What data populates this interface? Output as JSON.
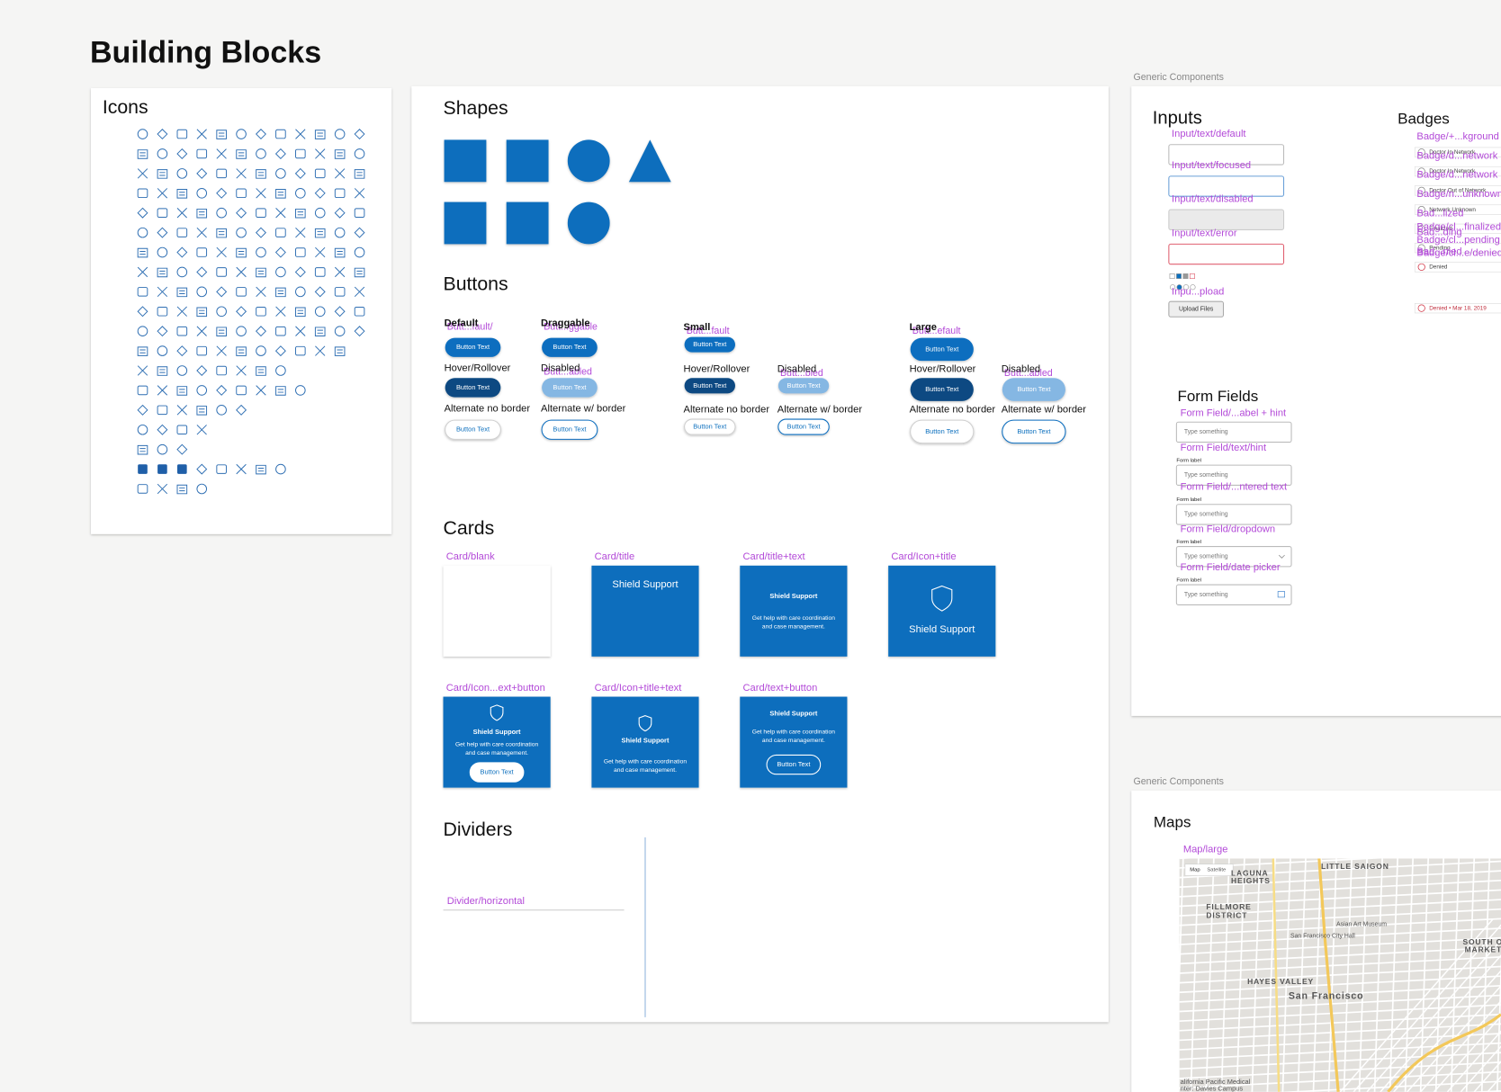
{
  "header": {
    "title": "Building Blocks"
  },
  "icons": {
    "title": "Icons"
  },
  "shapes": {
    "title": "Shapes"
  },
  "buttons": {
    "title": "Buttons",
    "button_text": "Button Text",
    "items": [
      {
        "label": "Default",
        "tag": "Butt...fault/",
        "style": "default",
        "size": "medium"
      },
      {
        "label": "Hover/Rollover",
        "style": "hover",
        "size": "medium"
      },
      {
        "label": "Alternate no border",
        "style": "alt",
        "size": "medium"
      },
      {
        "label": "Draggable",
        "tag": "Butt...ggable",
        "style": "default",
        "size": "medium"
      },
      {
        "label": "Disabled",
        "tag": "Butt...abled",
        "style": "disabled",
        "size": "medium"
      },
      {
        "label": "Alternate w/ border",
        "style": "alt_border",
        "size": "medium"
      },
      {
        "label": "Small",
        "tag": "Butt...fault",
        "style": "default",
        "size": "small"
      },
      {
        "label": "Hover/Rollover",
        "style": "hover",
        "size": "small"
      },
      {
        "label": "Alternate no border",
        "style": "alt",
        "size": "small"
      },
      {
        "label": "Disabled",
        "tag": "Butt...bled",
        "style": "disabled",
        "size": "small"
      },
      {
        "label": "Alternate w/ border",
        "style": "alt_border",
        "size": "small"
      },
      {
        "label": "Large",
        "tag": "Butt...efault",
        "style": "default",
        "size": "large"
      },
      {
        "label": "Hover/Rollover",
        "style": "hover",
        "size": "large"
      },
      {
        "label": "Alternate no border",
        "style": "alt",
        "size": "large"
      },
      {
        "label": "Disabled",
        "tag": "Butt...abled",
        "style": "disabled",
        "size": "large"
      },
      {
        "label": "Alternate w/ border",
        "style": "alt_border",
        "size": "large"
      }
    ]
  },
  "cards": {
    "title": "Cards",
    "items": [
      {
        "label": "Card/blank",
        "kind": "blank"
      },
      {
        "label": "Card/title",
        "kind": "title",
        "title": "Shield Support"
      },
      {
        "label": "Card/title+text",
        "kind": "title_text",
        "title": "Shield Support",
        "text_lines": [
          "Get help with care coordination",
          "and case management."
        ]
      },
      {
        "label": "Card/Icon+title",
        "kind": "icon_title",
        "title": "Shield Support"
      },
      {
        "label": "Card/Icon...ext+button",
        "kind": "icon_title_text_button",
        "title": "Shield Support",
        "text_lines": [
          "Get help with care coordination",
          "and case management."
        ],
        "button": "Button Text"
      },
      {
        "label": "Card/Icon+title+text",
        "kind": "icon_title_text",
        "title": "Shield Support",
        "text_lines": [
          "Get help with care coordination",
          "and case management."
        ]
      },
      {
        "label": "Card/text+button",
        "kind": "text_button",
        "title": "Shield Support",
        "text_lines": [
          "Get help with care coordination",
          "and case management."
        ],
        "button": "Button Text"
      }
    ]
  },
  "dividers": {
    "title": "Dividers",
    "horizontal_label": "Divider/horizontal"
  },
  "generic_top": {
    "caption": "Generic Components",
    "inputs": {
      "title": "Inputs",
      "fields": [
        {
          "tag": "Input/text/default",
          "state": "default"
        },
        {
          "tag": "Input/text/focused",
          "state": "focused"
        },
        {
          "tag": "Input/text/disabled",
          "state": "disabled"
        },
        {
          "tag": "Input/text/error",
          "state": "error"
        }
      ],
      "upload_tag": "Inpu...pload",
      "upload_button": "Upload Files"
    },
    "badges": {
      "title": "Badges",
      "items": [
        {
          "tag": "Badge/+...kground",
          "text": "Doctor In Network"
        },
        {
          "tag": "Badge/d...network",
          "text": "Doctor In Network"
        },
        {
          "tag": "Badge/d...network",
          "text": "Doctor Out of Network"
        },
        {
          "tag": "Badge/n...unknown",
          "text": "Network Unknown"
        },
        {
          "tag": "Bad...lized",
          "text": "Finalized"
        },
        {
          "tag": "Bad...ding",
          "text": "Pending"
        },
        {
          "tag": "Bad...nied",
          "text": "Denied"
        },
        {
          "tag": "Badge/cl...finalized"
        },
        {
          "tag": "Badge/cl...pending"
        },
        {
          "tag": "Badge/cl...e/denied",
          "text": "Denied • Mar 18, 2019"
        }
      ]
    },
    "form_fields": {
      "title": "Form Fields",
      "items": [
        {
          "tag": "Form Field/...abel + hint",
          "placeholder": "Type something",
          "kind": "text"
        },
        {
          "tag": "Form Field/text/hint",
          "label": "Form label",
          "placeholder": "Type something",
          "kind": "text"
        },
        {
          "tag": "Form Field/...ntered text",
          "label": "Form label",
          "placeholder": "Type something",
          "kind": "text"
        },
        {
          "tag": "Form Field/dropdown",
          "label": "Form label",
          "placeholder": "Type something",
          "kind": "dropdown"
        },
        {
          "tag": "Form Field/date picker",
          "label": "Form label",
          "placeholder": "Type something",
          "kind": "date"
        }
      ]
    }
  },
  "generic_bottom": {
    "caption": "Generic Components",
    "maps": {
      "title": "Maps",
      "tag": "Map/large",
      "controls": [
        "Map",
        "Satellite"
      ],
      "places": [
        "LAGUNA",
        "HEIGHTS",
        "LITTLE SAIGON",
        "FILLMORE",
        "DISTRICT",
        "Asian Art Museum",
        "San Francisco City Hall",
        "HAYES VALLEY",
        "San Francisco",
        "SOUTH OF",
        "MARKET",
        "alifornia Pacific Medical",
        "nter: Davies Campus"
      ]
    }
  }
}
